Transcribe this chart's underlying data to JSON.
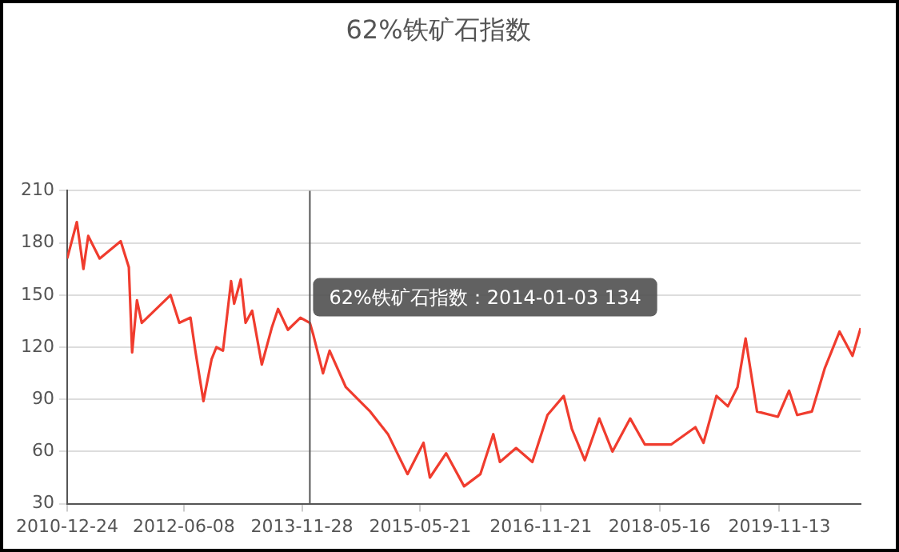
{
  "chart_data": {
    "type": "line",
    "title": "62%铁矿石指数",
    "x": [
      "2010-12-24",
      "2011-02-06",
      "2011-03-08",
      "2011-03-30",
      "2011-05-21",
      "2011-08-25",
      "2011-10-01",
      "2011-10-16",
      "2011-11-07",
      "2011-11-29",
      "2012-04-08",
      "2012-05-18",
      "2012-07-08",
      "2012-07-30",
      "2012-09-05",
      "2012-10-12",
      "2012-11-03",
      "2012-12-03",
      "2013-01-09",
      "2013-01-23",
      "2013-02-22",
      "2013-03-16",
      "2013-04-15",
      "2013-05-29",
      "2013-07-13",
      "2013-08-11",
      "2013-09-25",
      "2013-11-21",
      "2014-01-03",
      "2014-01-19",
      "2014-03-04",
      "2014-04-03",
      "2014-06-16",
      "2014-10-05",
      "2014-12-25",
      "2015-03-24",
      "2015-06-05",
      "2015-07-04",
      "2015-09-16",
      "2015-12-07",
      "2016-02-19",
      "2016-04-18",
      "2016-05-18",
      "2016-07-31",
      "2016-10-13",
      "2016-12-21",
      "2017-03-05",
      "2017-04-11",
      "2017-06-09",
      "2017-08-14",
      "2017-10-13",
      "2018-01-02",
      "2018-03-10",
      "2018-07-07",
      "2018-10-26",
      "2018-12-02",
      "2019-01-30",
      "2019-03-23",
      "2019-05-06",
      "2019-06-12",
      "2019-08-03",
      "2019-11-06",
      "2019-12-27",
      "2020-02-02",
      "2020-04-09",
      "2020-06-07",
      "2020-08-13",
      "2020-10-11",
      "2020-11-17"
    ],
    "series": [
      {
        "color": "#f03c2e",
        "values": [
          171,
          192,
          165,
          184,
          171,
          181,
          166,
          117,
          147,
          134,
          150,
          134,
          137,
          118,
          89,
          113,
          120,
          118,
          158,
          145,
          159,
          134,
          141,
          110,
          131,
          142,
          130,
          137,
          134,
          127,
          105,
          118,
          97,
          83,
          70,
          47,
          65,
          45,
          59,
          40,
          47,
          70,
          54,
          62,
          54,
          81,
          92,
          73,
          55,
          79,
          60,
          79,
          64,
          64,
          74,
          65,
          92,
          86,
          97,
          125,
          83,
          80,
          95,
          81,
          83,
          108,
          129,
          115,
          131
        ]
      }
    ],
    "xlim": [
      "2010-12-24",
      "2020-11-17"
    ],
    "xticks": [
      "2010-12-24",
      "2012-06-08",
      "2013-11-28",
      "2015-05-21",
      "2016-11-21",
      "2018-05-16",
      "2019-11-13"
    ],
    "ylim": [
      30,
      210
    ],
    "yticks": [
      30,
      60,
      90,
      120,
      150,
      180,
      210
    ],
    "grid": "y",
    "marker": "none",
    "ref_lines": [
      {
        "axis": "x",
        "value": "2014-01-03",
        "color": "#555555"
      }
    ],
    "annotations": [
      {
        "text": "62%铁矿石指数：2014-01-03 134",
        "x": "2014-01-03",
        "y": 134
      }
    ]
  }
}
